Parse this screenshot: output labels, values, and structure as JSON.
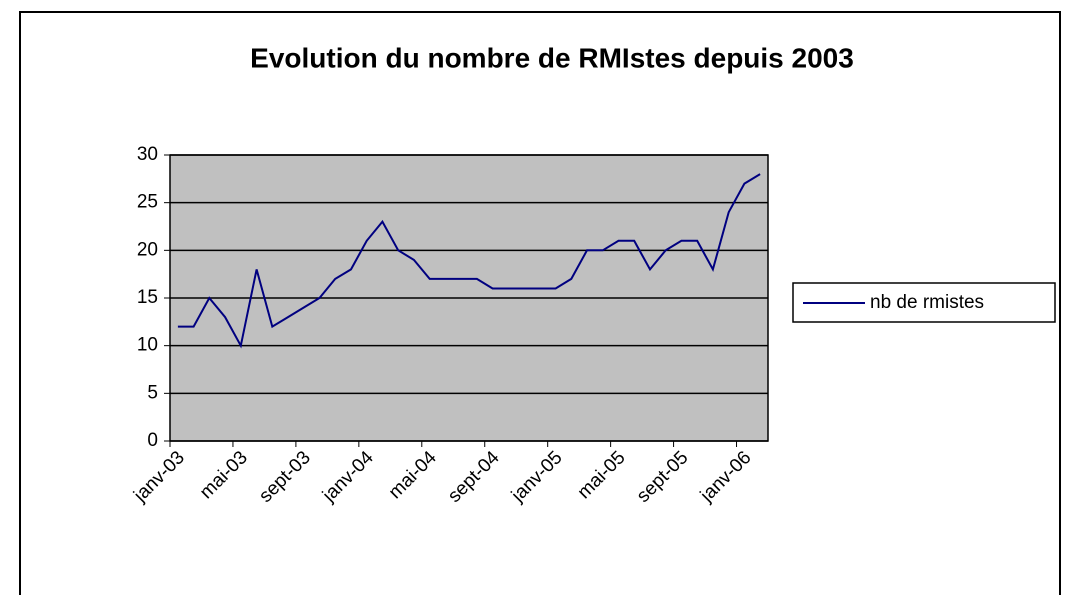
{
  "chart_data": {
    "type": "line",
    "title": "Evolution du nombre de RMIstes depuis 2003",
    "categories": [
      "janv-03",
      null,
      null,
      null,
      "mai-03",
      null,
      null,
      null,
      "sept-03",
      null,
      null,
      null,
      "janv-04",
      null,
      null,
      null,
      "mai-04",
      null,
      null,
      null,
      "sept-04",
      null,
      null,
      null,
      "janv-05",
      null,
      null,
      null,
      "mai-05",
      null,
      null,
      null,
      "sept-05",
      null,
      null,
      null,
      "janv-06",
      null
    ],
    "series": [
      {
        "name": "nb de rmistes",
        "color": "#000080",
        "values": [
          12,
          12,
          15,
          13,
          10,
          18,
          12,
          13,
          14,
          15,
          17,
          18,
          21,
          23,
          20,
          19,
          17,
          17,
          17,
          17,
          16,
          16,
          16,
          16,
          16,
          17,
          20,
          20,
          21,
          21,
          18,
          20,
          21,
          21,
          18,
          24,
          27,
          28
        ]
      }
    ],
    "ylim": [
      0,
      30
    ],
    "yticks": [
      0,
      5,
      10,
      15,
      20,
      25,
      30
    ],
    "grid": true,
    "legend": "right"
  }
}
